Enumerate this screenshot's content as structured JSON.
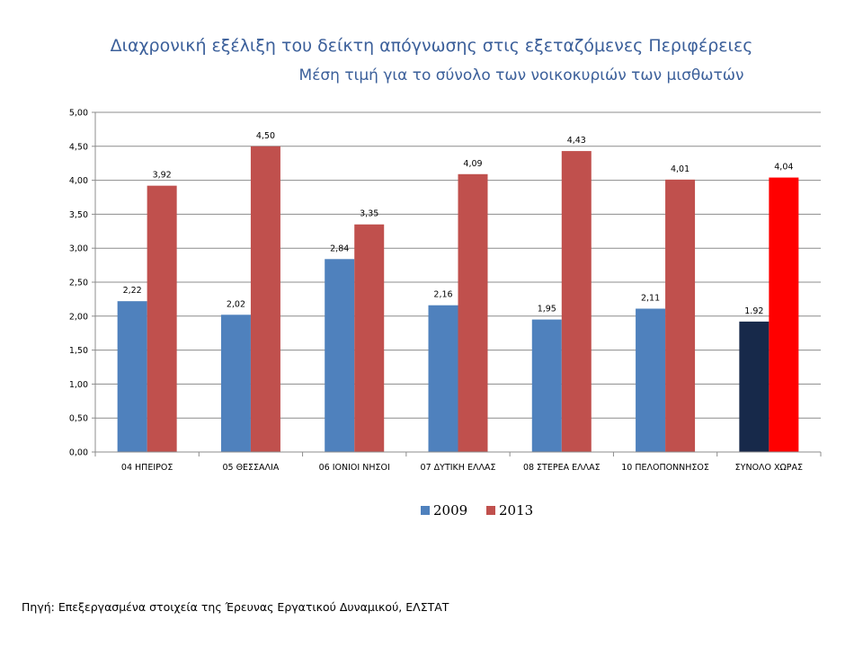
{
  "chart_data": {
    "type": "bar",
    "title": "Διαχρονική εξέλιξη του δείκτη απόγνωσης στις εξεταζόμενες Περιφέρειες",
    "subtitle": "Μέση τιμή για το σύνολο των νοικοκυριών των μισθωτών",
    "categories": [
      "04 ΗΠΕΙΡΟΣ",
      "05 ΘΕΣΣΑΛΙΑ",
      "06 ΙΟΝΙΟΙ ΝΗΣΟΙ",
      "07 ΔΥΤΙΚΗ ΕΛΛΑΣ",
      "08 ΣΤΕΡΕΑ ΕΛΛΑΣ",
      "10 ΠΕΛΟΠΟΝΝΗΣΟΣ",
      "ΣΥΝΟΛΟ ΧΩΡΑΣ"
    ],
    "series": [
      {
        "name": "2009",
        "color": "#4f81bd",
        "values": [
          2.22,
          2.02,
          2.84,
          2.16,
          1.95,
          2.11,
          1.92
        ],
        "labels": [
          "2,22",
          "2,02",
          "2,84",
          "2,16",
          "1,95",
          "2,11",
          "1.92"
        ]
      },
      {
        "name": "2013",
        "color": "#c0504d",
        "values": [
          3.92,
          4.5,
          3.35,
          4.09,
          4.43,
          4.01,
          4.04
        ],
        "labels": [
          "3,92",
          "4,50",
          "3,35",
          "4,09",
          "4,43",
          "4,01",
          "4,04"
        ]
      }
    ],
    "highlight": {
      "category_index": 6,
      "colors": [
        "#17294a",
        "#ff0000"
      ]
    },
    "ylim": [
      0,
      5
    ],
    "yticks": [
      "0,00",
      "0,50",
      "1,00",
      "1,50",
      "2,00",
      "2,50",
      "3,00",
      "3,50",
      "4,00",
      "4,50",
      "5,00"
    ],
    "grid": true,
    "legend": "bottom-center"
  },
  "source": "Πηγή: Επεξεργασμένα στοιχεία της Έρευνας Εργατικού Δυναμικού, ΕΛΣΤΑΤ"
}
